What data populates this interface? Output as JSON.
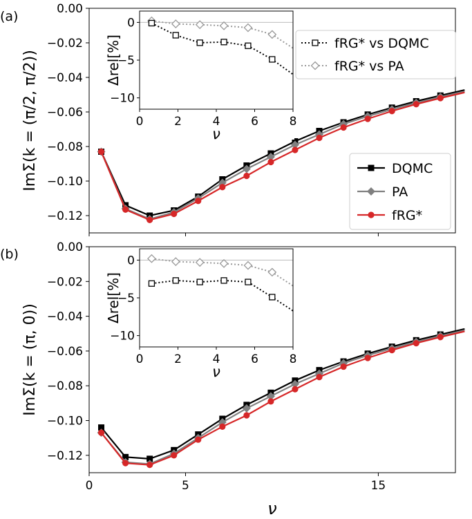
{
  "colors": {
    "DQMC": "#000000",
    "PA": "#808080",
    "fRG": "#d62728",
    "zero_line": "#bdbdbd"
  },
  "shared": {
    "x": [
      0.628,
      1.885,
      3.142,
      4.398,
      5.655,
      6.912,
      8.168,
      9.425,
      10.681,
      11.938,
      13.195,
      14.451,
      15.708,
      16.965,
      18.221,
      19.478
    ],
    "xlabel": "ν",
    "xticks": [
      0,
      5,
      15
    ],
    "xtick_labels": [
      "0",
      "5",
      "15"
    ],
    "xlim": [
      0,
      19
    ],
    "legend_main": [
      "DQMC",
      "PA",
      "fRG*"
    ],
    "legend_inset": [
      "fRG* vs DQMC",
      "fRG* vs PA"
    ]
  },
  "chart_data": [
    {
      "type": "line",
      "panel_label": "(a)",
      "ylabel": "ImΣ(k = (π/2, π/2))",
      "ylim": [
        -0.13,
        0.0
      ],
      "yticks": [
        "0.00",
        "−0.02",
        "−0.04",
        "−0.06",
        "−0.08",
        "−0.10",
        "−0.12"
      ],
      "ytick_values": [
        0.0,
        -0.02,
        -0.04,
        -0.06,
        -0.08,
        -0.1,
        -0.12
      ],
      "series": [
        {
          "name": "DQMC",
          "values": [
            -0.083,
            -0.114,
            -0.12,
            -0.117,
            -0.109,
            -0.099,
            -0.091,
            -0.084,
            -0.077,
            -0.071,
            -0.066,
            -0.0615,
            -0.0575,
            -0.0538,
            -0.0505,
            -0.0473
          ]
        },
        {
          "name": "PA",
          "values": [
            -0.083,
            -0.116,
            -0.122,
            -0.118,
            -0.11,
            -0.101,
            -0.093,
            -0.086,
            -0.079,
            -0.073,
            -0.067,
            -0.0625,
            -0.0585,
            -0.0547,
            -0.0513,
            -0.0481
          ]
        },
        {
          "name": "fRG*",
          "values": [
            -0.083,
            -0.1165,
            -0.1225,
            -0.119,
            -0.1115,
            -0.1035,
            -0.097,
            -0.089,
            -0.082,
            -0.075,
            -0.069,
            -0.064,
            -0.0595,
            -0.0555,
            -0.052,
            -0.0487
          ]
        }
      ],
      "inset": {
        "xlabel": "ν",
        "ylabel": "Δrel[%]",
        "xlim": [
          0,
          8
        ],
        "ylim": [
          -11.5,
          1.5
        ],
        "xticks": [
          0,
          2,
          4,
          6,
          8
        ],
        "yticks": [
          0,
          -5,
          -10
        ],
        "x": [
          0.628,
          1.885,
          3.142,
          4.398,
          5.655,
          6.912,
          8.168
        ],
        "series": [
          {
            "name": "fRG* vs DQMC",
            "values": [
              -0.1,
              -1.7,
              -2.7,
              -2.6,
              -3.1,
              -4.9,
              -7.2
            ]
          },
          {
            "name": "fRG* vs PA",
            "values": [
              0.2,
              -0.2,
              -0.3,
              -0.45,
              -0.7,
              -1.6,
              -3.7
            ]
          }
        ]
      }
    },
    {
      "type": "line",
      "panel_label": "(b)",
      "ylabel": "ImΣ(k = (π, 0))",
      "ylim": [
        -0.13,
        0.0
      ],
      "yticks": [
        "0.00",
        "−0.02",
        "−0.04",
        "−0.06",
        "−0.08",
        "−0.10",
        "−0.12"
      ],
      "ytick_values": [
        0.0,
        -0.02,
        -0.04,
        -0.06,
        -0.08,
        -0.1,
        -0.12
      ],
      "series": [
        {
          "name": "DQMC",
          "values": [
            -0.104,
            -0.121,
            -0.122,
            -0.117,
            -0.108,
            -0.099,
            -0.091,
            -0.084,
            -0.077,
            -0.071,
            -0.066,
            -0.0615,
            -0.0575,
            -0.0538,
            -0.0505,
            -0.0473
          ]
        },
        {
          "name": "PA",
          "values": [
            -0.107,
            -0.124,
            -0.125,
            -0.119,
            -0.11,
            -0.101,
            -0.093,
            -0.086,
            -0.079,
            -0.073,
            -0.067,
            -0.0625,
            -0.0585,
            -0.0547,
            -0.0513,
            -0.0481
          ]
        },
        {
          "name": "fRG*",
          "values": [
            -0.107,
            -0.1245,
            -0.1255,
            -0.12,
            -0.111,
            -0.1035,
            -0.097,
            -0.089,
            -0.082,
            -0.075,
            -0.069,
            -0.064,
            -0.0595,
            -0.0555,
            -0.052,
            -0.0487
          ]
        }
      ],
      "inset": {
        "xlabel": "ν",
        "ylabel": "Δrel[%]",
        "xlim": [
          0,
          8
        ],
        "ylim": [
          -11.5,
          1.5
        ],
        "xticks": [
          0,
          2,
          4,
          6,
          8
        ],
        "yticks": [
          0,
          -5,
          -10
        ],
        "x": [
          0.628,
          1.885,
          3.142,
          4.398,
          5.655,
          6.912,
          8.168
        ],
        "series": [
          {
            "name": "fRG* vs DQMC",
            "values": [
              -3.1,
              -2.7,
              -2.9,
              -2.7,
              -2.9,
              -4.9,
              -7.0
            ]
          },
          {
            "name": "fRG* vs PA",
            "values": [
              0.2,
              -0.2,
              -0.3,
              -0.45,
              -0.7,
              -1.6,
              -3.7
            ]
          }
        ]
      }
    }
  ]
}
